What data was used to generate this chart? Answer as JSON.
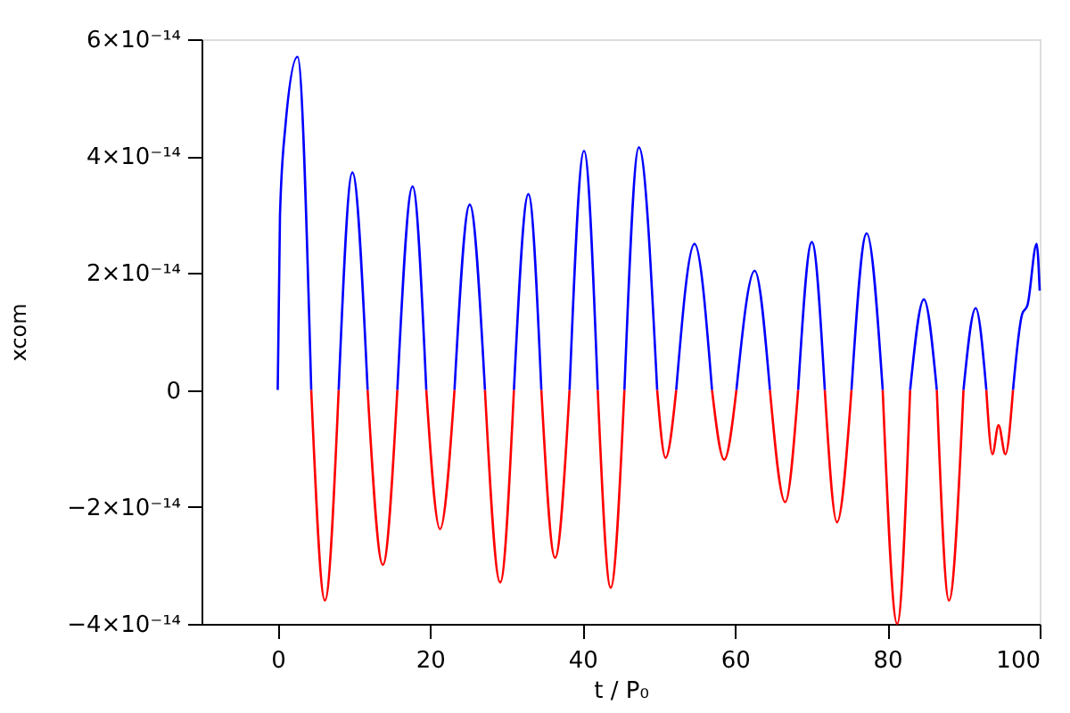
{
  "chart_data": {
    "type": "line",
    "xlabel": "t / P₀",
    "ylabel": "xcom",
    "xlim": [
      -10,
      100
    ],
    "xticks": [
      0,
      20,
      40,
      60,
      80,
      100
    ],
    "ylim": [
      -4e-14,
      6e-14
    ],
    "yticks": [
      {
        "value": -4e-14,
        "label": "−4×10⁻¹⁴"
      },
      {
        "value": -2e-14,
        "label": "−2×10⁻¹⁴"
      },
      {
        "value": 0,
        "label": "0"
      },
      {
        "value": 2e-14,
        "label": "2×10⁻¹⁴"
      },
      {
        "value": 4e-14,
        "label": "4×10⁻¹⁴"
      },
      {
        "value": 6e-14,
        "label": "6×10⁻¹⁴"
      }
    ],
    "grid": false,
    "legend": false,
    "line_style": "solid",
    "marker": "none",
    "series": [
      {
        "color": "#0000ff",
        "x": [
          0,
          0.3,
          1,
          2.6,
          4.4,
          null,
          8.0,
          9.8,
          11.8,
          null,
          15.7,
          17.7,
          19.5,
          null,
          23.2,
          25.2,
          27.2,
          null,
          31.0,
          32.9,
          34.6,
          null,
          38.3,
          40.2,
          42.0,
          null,
          45.5,
          47.4,
          49.8,
          null,
          52.3,
          54.7,
          57.0,
          null,
          60.2,
          62.6,
          64.6,
          null,
          68.3,
          70.1,
          71.8,
          null,
          75.3,
          77.3,
          79.4,
          null,
          83.0,
          84.8,
          86.5,
          null,
          90.0,
          91.6,
          93.0,
          null,
          96.5,
          97.7,
          98.4,
          99.6,
          100
        ],
        "values": [
          0,
          3e-14,
          4.5e-14,
          5.7e-14,
          0,
          null,
          0,
          3.72e-14,
          0,
          null,
          0,
          3.48e-14,
          0,
          null,
          0,
          3.17e-14,
          0,
          null,
          0,
          3.35e-14,
          0,
          null,
          0,
          4.09e-14,
          0,
          null,
          0,
          4.15e-14,
          0,
          null,
          0,
          2.5e-14,
          0,
          null,
          0,
          2.04e-14,
          0,
          null,
          0,
          2.53e-14,
          0,
          null,
          0,
          2.68e-14,
          0,
          null,
          0,
          1.55e-14,
          0,
          null,
          0,
          1.4e-14,
          0,
          null,
          0,
          1.3e-14,
          1.45e-14,
          2.5e-14,
          1.7e-14
        ]
      },
      {
        "color": "#ff0000",
        "x": [
          4.4,
          6.2,
          8.0,
          null,
          11.8,
          13.8,
          15.7,
          null,
          19.5,
          21.3,
          23.2,
          null,
          27.2,
          29.2,
          31.0,
          null,
          34.6,
          36.4,
          38.3,
          null,
          42.0,
          43.7,
          45.5,
          null,
          49.8,
          50.9,
          52.3,
          null,
          57.0,
          58.6,
          60.2,
          null,
          64.6,
          66.6,
          68.3,
          null,
          71.8,
          73.4,
          75.3,
          null,
          79.4,
          81.3,
          83.0,
          null,
          86.5,
          88.1,
          90.0,
          null,
          93.0,
          93.8,
          94.6,
          95.5,
          96.5
        ],
        "values": [
          0,
          -3.6e-14,
          0,
          null,
          0,
          -2.99e-14,
          0,
          null,
          0,
          -2.38e-14,
          0,
          null,
          0,
          -3.29e-14,
          0,
          null,
          0,
          -2.87e-14,
          0,
          null,
          0,
          -3.38e-14,
          0,
          null,
          0,
          -1.16e-14,
          0,
          null,
          0,
          -1.19e-14,
          0,
          null,
          0,
          -1.92e-14,
          0,
          null,
          0,
          -2.26e-14,
          0,
          null,
          0,
          -4e-14,
          0,
          null,
          0,
          -3.6e-14,
          0,
          null,
          0,
          -1.1e-14,
          -6e-15,
          -1.1e-14,
          0
        ]
      }
    ]
  }
}
